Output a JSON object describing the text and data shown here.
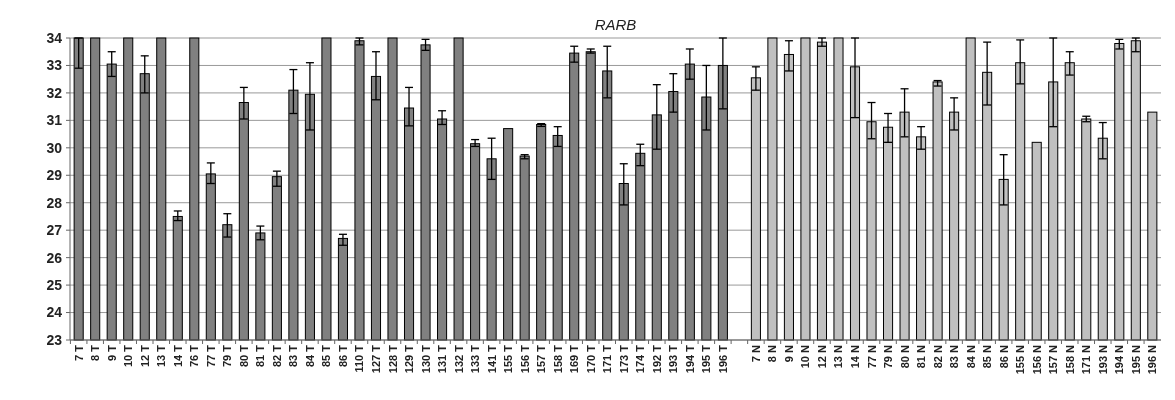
{
  "chart_data": {
    "type": "bar",
    "title": "RARB",
    "categories": [
      "7 T",
      "8 T",
      "9 T",
      "10 T",
      "12 T",
      "13 T",
      "14 T",
      "76 T",
      "77 T",
      "79 T",
      "80 T",
      "81 T",
      "82 T",
      "83 T",
      "84 T",
      "85 T",
      "86 T",
      "110 T",
      "127 T",
      "128 T",
      "129 T",
      "130 T",
      "131 T",
      "132 T",
      "133 T",
      "141 T",
      "155 T",
      "156 T",
      "157 T",
      "158 T",
      "169 T",
      "170 T",
      "171 T",
      "173 T",
      "174 T",
      "192 T",
      "193 T",
      "194 T",
      "195 T",
      "196 T",
      null,
      "7 N",
      "8 N",
      "9 N",
      "10 N",
      "12 N",
      "13 N",
      "14 N",
      "77 N",
      "79 N",
      "80 N",
      "81 N",
      "82 N",
      "83 N",
      "84 N",
      "85 N",
      "86 N",
      "155 N",
      "156 N",
      "157 N",
      "158 N",
      "171 N",
      "193 N",
      "194 N",
      "195 N",
      "196 N"
    ],
    "values": [
      34,
      34,
      33.05,
      34,
      32.7,
      34,
      27.5,
      34,
      29.05,
      27.2,
      31.65,
      26.9,
      28.95,
      32.1,
      31.95,
      34,
      26.7,
      33.9,
      32.6,
      34,
      31.45,
      33.75,
      31.05,
      34,
      30.15,
      29.6,
      30.7,
      29.7,
      30.85,
      30.45,
      33.45,
      33.5,
      32.8,
      28.7,
      29.8,
      31.2,
      32.05,
      33.05,
      31.85,
      33,
      null,
      32.55,
      34,
      33.4,
      34,
      33.85,
      34,
      32.95,
      30.95,
      30.75,
      31.3,
      30.4,
      32.4,
      31.3,
      34,
      32.75,
      28.85,
      33.1,
      30.2,
      32.4,
      33.1,
      31.05,
      30.35,
      33.8,
      33.9,
      31.3
    ],
    "errors": [
      [
        32.9,
        34
      ],
      null,
      [
        32.6,
        33.5
      ],
      null,
      [
        32,
        33.35
      ],
      null,
      [
        27.35,
        27.7
      ],
      null,
      [
        28.7,
        29.45
      ],
      [
        26.75,
        27.6
      ],
      [
        31.05,
        32.2
      ],
      [
        26.65,
        27.15
      ],
      [
        28.6,
        29.15
      ],
      [
        31.25,
        32.85
      ],
      [
        30.65,
        33.1
      ],
      null,
      [
        26.45,
        26.85
      ],
      [
        33.75,
        34
      ],
      [
        31.75,
        33.5
      ],
      null,
      [
        30.8,
        32.2
      ],
      [
        33.55,
        33.95
      ],
      [
        30.85,
        31.35
      ],
      null,
      [
        30.05,
        30.3
      ],
      [
        28.85,
        30.35
      ],
      null,
      [
        29.6,
        29.75
      ],
      [
        30.78,
        30.88
      ],
      [
        30.05,
        30.77
      ],
      [
        33.12,
        33.7
      ],
      [
        33.45,
        33.6
      ],
      [
        31.82,
        33.7
      ],
      [
        27.92,
        29.42
      ],
      [
        29.35,
        30.13
      ],
      [
        29.95,
        32.3
      ],
      [
        31.3,
        32.7
      ],
      [
        32.5,
        33.6
      ],
      [
        30.65,
        33
      ],
      [
        31.42,
        34
      ],
      null,
      [
        32.1,
        32.95
      ],
      null,
      [
        32.8,
        33.9
      ],
      null,
      [
        33.7,
        34
      ],
      null,
      [
        31.1,
        34
      ],
      [
        30.33,
        31.65
      ],
      [
        30.2,
        31.25
      ],
      [
        30.4,
        32.15
      ],
      [
        29.95,
        30.77
      ],
      [
        32.25,
        32.45
      ],
      [
        30.65,
        31.82
      ],
      null,
      [
        31.56,
        33.85
      ],
      [
        27.92,
        29.75
      ],
      [
        32.33,
        33.93
      ],
      null,
      [
        30.77,
        34
      ],
      [
        32.65,
        33.5
      ],
      [
        30.95,
        31.15
      ],
      [
        29.6,
        30.92
      ],
      [
        33.6,
        33.95
      ],
      [
        33.5,
        34
      ],
      null
    ],
    "colors": [
      "#808080",
      "#808080",
      "#808080",
      "#808080",
      "#808080",
      "#808080",
      "#808080",
      "#808080",
      "#808080",
      "#808080",
      "#808080",
      "#808080",
      "#808080",
      "#808080",
      "#808080",
      "#808080",
      "#808080",
      "#808080",
      "#808080",
      "#808080",
      "#808080",
      "#808080",
      "#808080",
      "#808080",
      "#808080",
      "#808080",
      "#808080",
      "#808080",
      "#808080",
      "#808080",
      "#808080",
      "#808080",
      "#808080",
      "#808080",
      "#808080",
      "#808080",
      "#808080",
      "#808080",
      "#808080",
      "#808080",
      null,
      "#c0c0c0",
      "#c0c0c0",
      "#c0c0c0",
      "#c0c0c0",
      "#c0c0c0",
      "#c0c0c0",
      "#c0c0c0",
      "#c0c0c0",
      "#c0c0c0",
      "#c0c0c0",
      "#c0c0c0",
      "#c0c0c0",
      "#c0c0c0",
      "#c0c0c0",
      "#c0c0c0",
      "#c0c0c0",
      "#c0c0c0",
      "#c0c0c0",
      "#c0c0c0",
      "#c0c0c0",
      "#c0c0c0",
      "#c0c0c0",
      "#c0c0c0",
      "#c0c0c0",
      "#c0c0c0"
    ],
    "ylim": [
      23,
      34
    ],
    "yticks": [
      23,
      24,
      25,
      26,
      27,
      28,
      29,
      30,
      31,
      32,
      33,
      34
    ],
    "grid": "y"
  }
}
